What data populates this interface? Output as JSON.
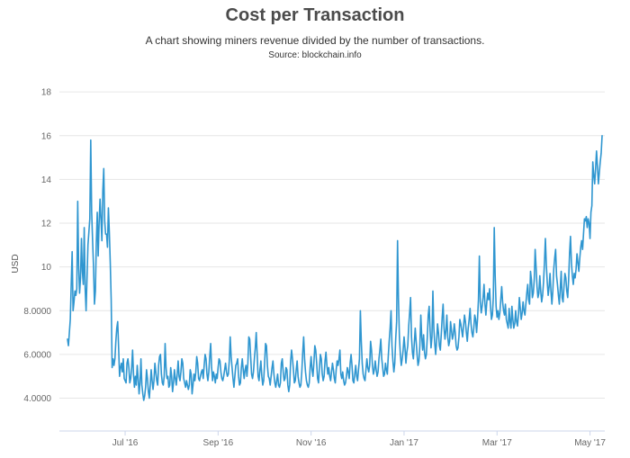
{
  "chart_data": {
    "type": "line",
    "title": "Cost per Transaction",
    "subtitle": "A chart showing miners revenue divided by the number of transactions.",
    "source": "Source: blockchain.info",
    "xlabel": "",
    "ylabel": "USD",
    "ylim": [
      2.5,
      18.5
    ],
    "y_ticks": [
      {
        "value": 4,
        "label": "4.0000"
      },
      {
        "value": 6,
        "label": "6.0000"
      },
      {
        "value": 8,
        "label": "8.0000"
      },
      {
        "value": 10,
        "label": "10"
      },
      {
        "value": 12,
        "label": "12"
      },
      {
        "value": 14,
        "label": "14"
      },
      {
        "value": 16,
        "label": "16"
      },
      {
        "value": 18,
        "label": "18"
      }
    ],
    "x_ticks": [
      {
        "label": "Jul '16",
        "index": 62
      },
      {
        "label": "Sep '16",
        "index": 162
      },
      {
        "label": "Nov '16",
        "index": 262
      },
      {
        "label": "Jan '17",
        "index": 362
      },
      {
        "label": "Mar '17",
        "index": 462
      },
      {
        "label": "May '17",
        "index": 562
      }
    ],
    "grid": true,
    "color": "#2f96d0",
    "series": [
      {
        "name": "Cost per Transaction",
        "values": [
          6.7,
          6.4,
          7.0,
          7.6,
          9.2,
          10.7,
          8.0,
          8.4,
          8.9,
          8.7,
          9.0,
          13.0,
          10.0,
          8.8,
          9.5,
          11.3,
          9.8,
          9.2,
          11.8,
          9.0,
          8.0,
          9.5,
          11.0,
          11.6,
          12.2,
          15.8,
          12.5,
          11.2,
          10.0,
          8.3,
          8.9,
          11.1,
          12.5,
          10.5,
          12.0,
          13.1,
          12.2,
          11.2,
          13.5,
          14.5,
          12.1,
          11.5,
          11.5,
          10.9,
          12.7,
          11.6,
          10.2,
          8.5,
          5.4,
          5.8,
          5.5,
          5.8,
          6.6,
          7.2,
          7.5,
          6.3,
          5.0,
          5.4,
          5.6,
          5.2,
          5.8,
          4.9,
          4.8,
          4.7,
          5.6,
          5.8,
          5.4,
          4.7,
          4.9,
          5.4,
          6.2,
          5.1,
          4.5,
          5.0,
          4.6,
          5.5,
          4.9,
          4.2,
          4.7,
          5.8,
          4.6,
          4.2,
          3.9,
          4.1,
          4.5,
          5.3,
          4.9,
          4.3,
          4.0,
          4.6,
          5.3,
          4.8,
          4.4,
          4.8,
          5.6,
          5.2,
          4.8,
          4.6,
          5.5,
          5.9,
          6.0,
          5.1,
          4.7,
          4.6,
          5.0,
          6.5,
          5.4,
          4.9,
          5.0,
          4.5,
          4.6,
          5.4,
          5.0,
          4.3,
          4.7,
          5.3,
          4.9,
          4.6,
          5.1,
          5.7,
          5.0,
          4.8,
          5.2,
          5.8,
          5.6,
          4.9,
          4.7,
          4.5,
          4.8,
          4.6,
          4.4,
          4.6,
          5.3,
          5.1,
          4.2,
          4.6,
          5.1,
          4.8,
          5.2,
          5.9,
          5.6,
          4.9,
          4.8,
          5.0,
          5.2,
          5.3,
          4.9,
          5.5,
          6.0,
          5.8,
          5.1,
          4.8,
          5.2,
          5.9,
          6.5,
          5.4,
          4.8,
          5.2,
          5.0,
          4.7,
          5.1,
          4.9,
          5.4,
          5.8,
          5.7,
          5.2,
          4.9,
          4.8,
          5.0,
          5.3,
          5.6,
          5.2,
          5.0,
          5.1,
          5.7,
          6.8,
          5.9,
          5.4,
          4.9,
          4.5,
          5.0,
          5.5,
          5.6,
          5.8,
          5.0,
          4.6,
          4.7,
          5.4,
          5.8,
          5.3,
          4.9,
          5.3,
          5.5,
          5.0,
          5.6,
          6.8,
          6.7,
          5.9,
          5.1,
          4.9,
          5.2,
          5.8,
          6.3,
          7.0,
          6.0,
          5.0,
          4.8,
          5.3,
          5.7,
          5.0,
          4.6,
          4.8,
          5.6,
          6.5,
          6.4,
          5.5,
          5.0,
          4.9,
          4.6,
          5.0,
          5.4,
          5.7,
          5.1,
          4.7,
          4.5,
          4.8,
          5.1,
          4.6,
          4.5,
          4.7,
          5.6,
          5.8,
          5.2,
          4.8,
          4.9,
          5.4,
          5.3,
          4.6,
          4.3,
          4.6,
          5.7,
          6.2,
          5.8,
          5.3,
          4.7,
          4.8,
          5.3,
          5.7,
          5.0,
          4.7,
          4.5,
          4.6,
          5.2,
          6.1,
          6.8,
          5.8,
          5.2,
          4.8,
          4.6,
          4.5,
          4.7,
          5.4,
          5.9,
          5.3,
          5.0,
          5.6,
          6.4,
          6.2,
          5.6,
          4.9,
          4.7,
          5.4,
          6.0,
          5.8,
          5.1,
          4.8,
          5.0,
          5.7,
          6.1,
          5.5,
          5.1,
          5.4,
          5.0,
          4.8,
          5.2,
          5.6,
          5.3,
          4.9,
          4.7,
          5.3,
          5.7,
          5.5,
          5.8,
          6.2,
          5.1,
          4.9,
          5.2,
          4.8,
          4.6,
          4.7,
          5.0,
          5.4,
          5.2,
          4.9,
          5.6,
          6.0,
          5.5,
          4.8,
          4.7,
          5.1,
          5.5,
          5.0,
          4.8,
          5.3,
          5.8,
          8.0,
          6.6,
          5.6,
          5.1,
          4.9,
          4.8,
          5.3,
          5.8,
          5.4,
          5.2,
          5.5,
          6.6,
          6.2,
          5.5,
          5.1,
          5.3,
          5.7,
          5.3,
          5.0,
          5.2,
          5.8,
          6.2,
          6.7,
          5.8,
          5.4,
          5.0,
          5.1,
          5.6,
          5.3,
          5.1,
          5.9,
          6.6,
          7.2,
          8.0,
          6.4,
          5.7,
          5.2,
          5.6,
          6.7,
          7.5,
          11.2,
          8.5,
          6.8,
          6.0,
          5.5,
          5.8,
          6.2,
          6.8,
          6.3,
          5.6,
          6.1,
          6.4,
          7.3,
          7.9,
          8.6,
          6.8,
          6.1,
          5.8,
          6.5,
          7.2,
          6.6,
          6.0,
          5.5,
          5.7,
          6.4,
          7.8,
          6.8,
          6.2,
          6.9,
          6.1,
          5.8,
          6.0,
          6.8,
          7.8,
          8.2,
          7.1,
          6.3,
          6.8,
          8.9,
          7.2,
          6.5,
          6.0,
          6.6,
          7.4,
          7.0,
          6.4,
          6.2,
          6.9,
          7.7,
          8.3,
          7.2,
          6.7,
          7.1,
          7.8,
          6.8,
          6.4,
          6.6,
          7.5,
          7.1,
          6.7,
          6.9,
          7.4,
          7.0,
          6.4,
          6.2,
          6.3,
          6.8,
          7.6,
          7.4,
          7.1,
          6.8,
          7.3,
          7.8,
          7.5,
          7.0,
          6.6,
          7.2,
          7.6,
          8.1,
          7.4,
          7.0,
          6.8,
          7.2,
          7.8,
          7.6,
          7.0,
          7.6,
          8.5,
          10.5,
          8.4,
          7.9,
          8.2,
          8.6,
          9.2,
          8.3,
          7.8,
          8.4,
          8.8,
          8.5,
          9.0,
          8.2,
          7.6,
          7.8,
          8.6,
          11.8,
          9.6,
          8.2,
          7.7,
          8.0,
          7.6,
          7.9,
          8.5,
          9.1,
          8.4,
          8.0,
          7.8,
          8.3,
          7.6,
          7.4,
          7.2,
          8.1,
          7.5,
          7.2,
          8.2,
          7.6,
          7.2,
          7.4,
          8.0,
          7.5,
          7.3,
          7.8,
          8.6,
          8.1,
          7.6,
          7.9,
          8.4,
          8.0,
          7.8,
          8.3,
          8.8,
          9.2,
          8.5,
          8.3,
          9.8,
          9.4,
          8.6,
          8.8,
          9.4,
          10.8,
          10.0,
          9.1,
          8.6,
          8.8,
          9.6,
          8.9,
          8.4,
          8.7,
          9.3,
          10.2,
          11.3,
          10.1,
          9.3,
          8.7,
          9.1,
          9.7,
          8.9,
          8.3,
          8.9,
          9.9,
          10.4,
          10.8,
          9.6,
          9.2,
          8.7,
          8.3,
          9.0,
          9.8,
          8.6,
          8.4,
          9.1,
          9.7,
          9.5,
          8.9,
          8.6,
          9.4,
          10.6,
          11.4,
          10.2,
          9.6,
          9.2,
          9.7,
          9.5,
          9.9,
          10.6,
          10.2,
          9.8,
          10.4,
          10.9,
          11.2,
          10.8,
          11.5,
          12.2,
          12.1,
          12.3,
          11.8,
          12.2,
          12.0,
          11.3,
          12.5,
          12.8,
          14.8,
          14.2,
          13.8,
          14.5,
          15.3,
          14.6,
          13.8,
          14.3,
          14.8,
          15.2,
          16.0
        ]
      }
    ]
  }
}
